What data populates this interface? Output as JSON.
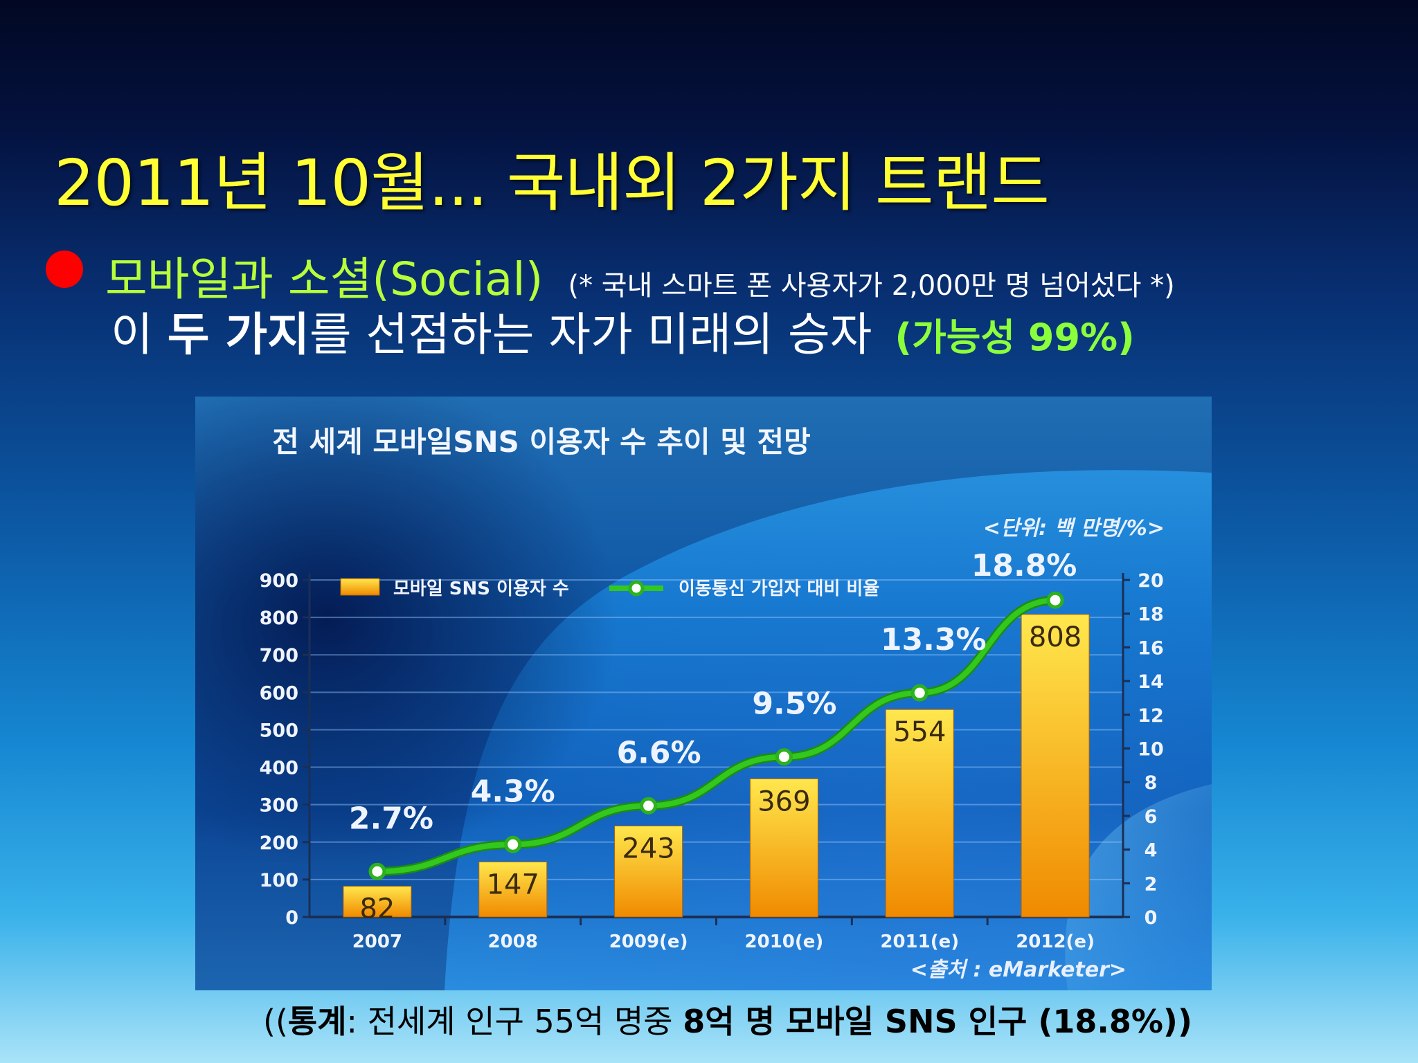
{
  "slide": {
    "title": "2011년 10월... 국내외 2가지 트랜드",
    "bullet_main": "모바일과 소셜(Social)",
    "bullet_note": "(* 국내 스마트 폰 사용자가 2,000만 명 넘어섰다 *)",
    "line2_pre": "이 ",
    "line2_bold": "두 가지",
    "line2_post": "를 선점하는 자가 미래의 승자 ",
    "probability": "(가능성 99%)",
    "footer_prefix": "((",
    "footer_bold1": "통계",
    "footer_mid": ": 전세계 인구 55억 명중 ",
    "footer_bold2": "8억 명 모바일 SNS 인구 (18.8%))"
  },
  "colors": {
    "title": "#ffff33",
    "bullet_dot": "#ff0000",
    "bullet_main": "#b7ff3a",
    "probability": "#8cff3c",
    "bar_top": "#ffe74d",
    "bar_bottom": "#f08a00",
    "line": "#32c81e"
  },
  "chart_data": {
    "type": "bar",
    "title": "전 세계 모바일SNS 이용자 수 추이 및 전망",
    "unit_note": "<단위: 백 만명/%>",
    "source": "<출처 : eMarketer>",
    "categories": [
      "2007",
      "2008",
      "2009(e)",
      "2010(e)",
      "2011(e)",
      "2012(e)"
    ],
    "series": [
      {
        "name": "모바일 SNS 이용자 수",
        "type": "bar",
        "axis": "left",
        "values": [
          82,
          147,
          243,
          369,
          554,
          808
        ]
      },
      {
        "name": "이동통신 가입자 대비 비율",
        "type": "line",
        "axis": "right",
        "values": [
          2.7,
          4.3,
          6.6,
          9.5,
          13.3,
          18.8
        ]
      }
    ],
    "bar_labels": [
      "82",
      "147",
      "243",
      "369",
      "554",
      "808"
    ],
    "line_labels": [
      "2.7%",
      "4.3%",
      "6.6%",
      "9.5%",
      "13.3%",
      "18.8%"
    ],
    "left_axis": {
      "ticks": [
        "0",
        "100",
        "200",
        "300",
        "400",
        "500",
        "600",
        "700",
        "800",
        "900"
      ],
      "range": [
        0,
        900
      ]
    },
    "right_axis": {
      "ticks": [
        "0",
        "2",
        "4",
        "6",
        "8",
        "10",
        "12",
        "14",
        "16",
        "18",
        "20"
      ],
      "range": [
        0,
        20
      ]
    },
    "grid": true,
    "legend": "top"
  }
}
